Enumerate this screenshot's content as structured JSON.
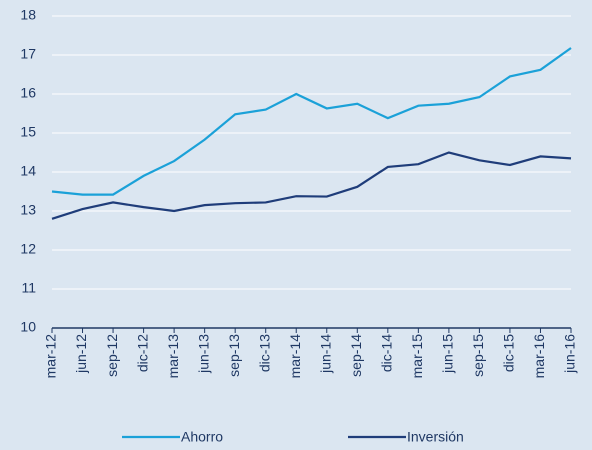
{
  "chart_data": {
    "type": "line",
    "categories": [
      "mar-12",
      "jun-12",
      "sep-12",
      "dic-12",
      "mar-13",
      "jun-13",
      "sep-13",
      "dic-13",
      "mar-14",
      "jun-14",
      "sep-14",
      "dic-14",
      "mar-15",
      "jun-15",
      "sep-15",
      "dic-15",
      "mar-16",
      "jun-16"
    ],
    "series": [
      {
        "name": "Ahorro",
        "color": "#1ba1d8",
        "values": [
          13.5,
          13.42,
          13.42,
          13.9,
          14.28,
          14.83,
          15.48,
          15.6,
          16.0,
          15.63,
          15.75,
          15.38,
          15.7,
          15.75,
          15.92,
          16.45,
          16.62,
          17.18
        ]
      },
      {
        "name": "Inversión",
        "color": "#1f3d7a",
        "values": [
          12.8,
          13.05,
          13.22,
          13.1,
          13.0,
          13.15,
          13.2,
          13.22,
          13.38,
          13.37,
          13.62,
          14.13,
          14.2,
          14.5,
          14.3,
          14.18,
          14.4,
          14.35
        ]
      }
    ],
    "ylim": [
      10,
      18
    ],
    "yticks": [
      10,
      11,
      12,
      13,
      14,
      15,
      16,
      17,
      18
    ],
    "grid": true,
    "legend": "bottom"
  }
}
